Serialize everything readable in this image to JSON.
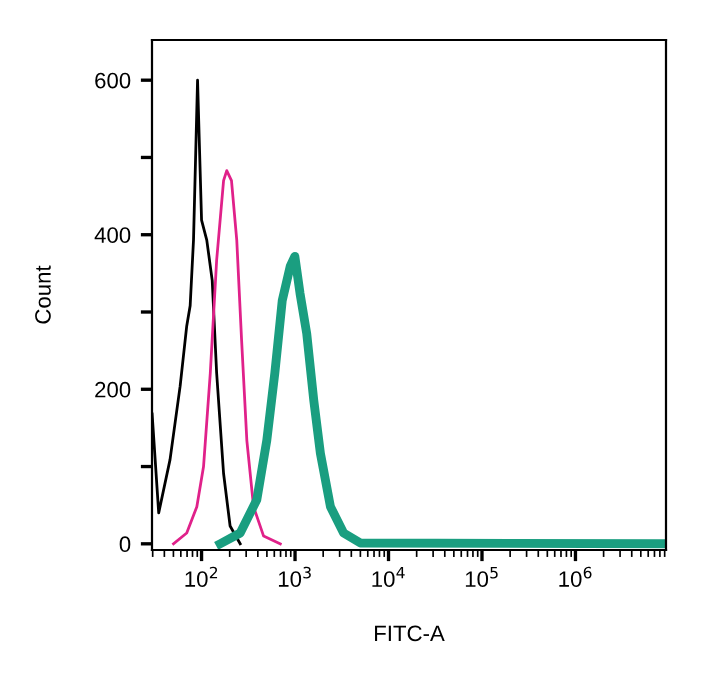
{
  "chart_data": {
    "type": "line",
    "xlabel": "FITC-A",
    "ylabel": "Count",
    "log": "x",
    "grid": false,
    "legend": false,
    "marker": "none",
    "line_style": "solid",
    "xlim": [
      29.5,
      9300000
    ],
    "ylim": [
      -8,
      652
    ],
    "xticks": [
      {
        "value": 100,
        "label": "10$^{2}$"
      },
      {
        "value": 1000,
        "label": "10$^{3}$"
      },
      {
        "value": 10000,
        "label": "10$^{4}$"
      },
      {
        "value": 100000,
        "label": "10$^{5}$"
      },
      {
        "value": 1000000,
        "label": "10$^{6}$"
      }
    ],
    "yticks": [
      0,
      {
        "value": 100,
        "label": null
      },
      200,
      {
        "value": 300,
        "label": null
      },
      400,
      {
        "value": 500,
        "label": null
      },
      600
    ],
    "series": [
      {
        "color": "#000000",
        "x": [
          29.6,
          34.8,
          46,
          59,
          69.4,
          75.5,
          82,
          90.6,
          100,
          113.7,
          130,
          145,
          172,
          202,
          259
        ],
        "values": [
          168,
          40,
          109,
          204,
          282,
          308,
          393,
          600,
          419,
          393,
          341,
          221,
          91,
          23,
          0
        ]
      },
      {
        "color": "#e0218a",
        "x": [
          50.1,
          69.4,
          89,
          105,
          124,
          145,
          172,
          186,
          209,
          238,
          268,
          305,
          360,
          461,
          696
        ],
        "values": [
          0,
          14,
          48,
          100,
          221,
          367,
          470,
          483,
          470,
          393,
          264,
          134,
          48,
          10,
          0
        ]
      },
      {
        "color": "#1a9e80",
        "x": [
          158,
          259,
          390,
          499,
          608,
          730,
          887,
          995,
          1131,
          1334,
          1585,
          1868,
          2393,
          3308,
          5008,
          9300000
        ],
        "values": [
          0,
          14,
          57,
          134,
          221,
          315,
          359,
          372,
          324,
          272,
          186,
          117,
          48,
          14,
          1,
          0
        ]
      }
    ]
  }
}
